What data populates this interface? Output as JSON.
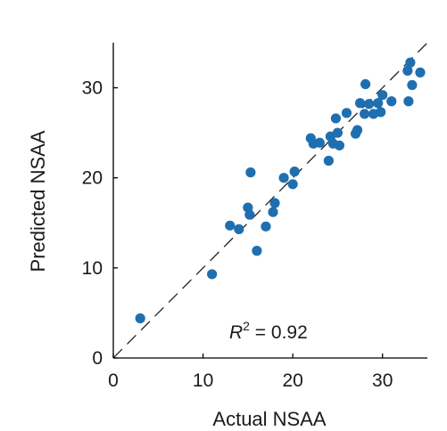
{
  "chart_data": {
    "type": "scatter",
    "title": "",
    "xlabel": "Actual NSAA",
    "ylabel": "Predicted NSAA",
    "xlim": [
      0,
      35
    ],
    "ylim": [
      0,
      35
    ],
    "x_ticks": [
      0,
      10,
      20,
      30
    ],
    "y_ticks": [
      0,
      10,
      20,
      30
    ],
    "grid": false,
    "reference_line": "identity (y = x), dashed",
    "annotation": {
      "var": "R",
      "sup": "2",
      "rest": " = 0.92"
    },
    "marker_color": "#1f6fb0",
    "series": [
      {
        "points": [
          [
            3,
            4.4
          ],
          [
            11,
            9.3
          ],
          [
            13,
            14.7
          ],
          [
            14,
            14.3
          ],
          [
            15,
            16.7
          ],
          [
            15.2,
            15.9
          ],
          [
            15.3,
            20.6
          ],
          [
            16,
            11.9
          ],
          [
            17,
            14.6
          ],
          [
            17.8,
            16.2
          ],
          [
            18,
            17.2
          ],
          [
            19,
            20
          ],
          [
            20,
            19.3
          ],
          [
            20.2,
            20.7
          ],
          [
            22,
            24.4
          ],
          [
            22.3,
            23.8
          ],
          [
            23,
            23.9
          ],
          [
            24,
            21.9
          ],
          [
            24.2,
            24.6
          ],
          [
            24.5,
            23.8
          ],
          [
            24.8,
            26.6
          ],
          [
            25,
            25
          ],
          [
            25.2,
            23.6
          ],
          [
            26,
            27.2
          ],
          [
            27,
            24.9
          ],
          [
            27.2,
            25.3
          ],
          [
            27.5,
            28.3
          ],
          [
            28,
            27.1
          ],
          [
            28.1,
            30.4
          ],
          [
            28.5,
            28.2
          ],
          [
            29,
            27.1
          ],
          [
            29.5,
            28.3
          ],
          [
            29.8,
            27.3
          ],
          [
            30,
            29.2
          ],
          [
            31,
            28.5
          ],
          [
            32.8,
            31.9
          ],
          [
            32.9,
            28.5
          ],
          [
            33.1,
            32.8
          ],
          [
            33.3,
            30.3
          ],
          [
            34.2,
            31.7
          ]
        ]
      }
    ]
  }
}
